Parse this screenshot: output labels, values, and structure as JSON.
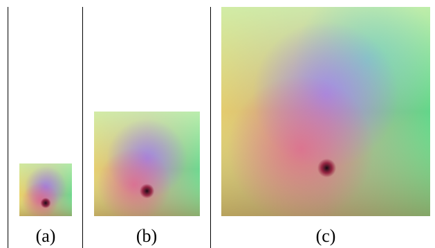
{
  "figure": {
    "panels": [
      {
        "id": "a",
        "label": "(a)"
      },
      {
        "id": "b",
        "label": "(b)"
      },
      {
        "id": "c",
        "label": "(c)"
      }
    ]
  }
}
